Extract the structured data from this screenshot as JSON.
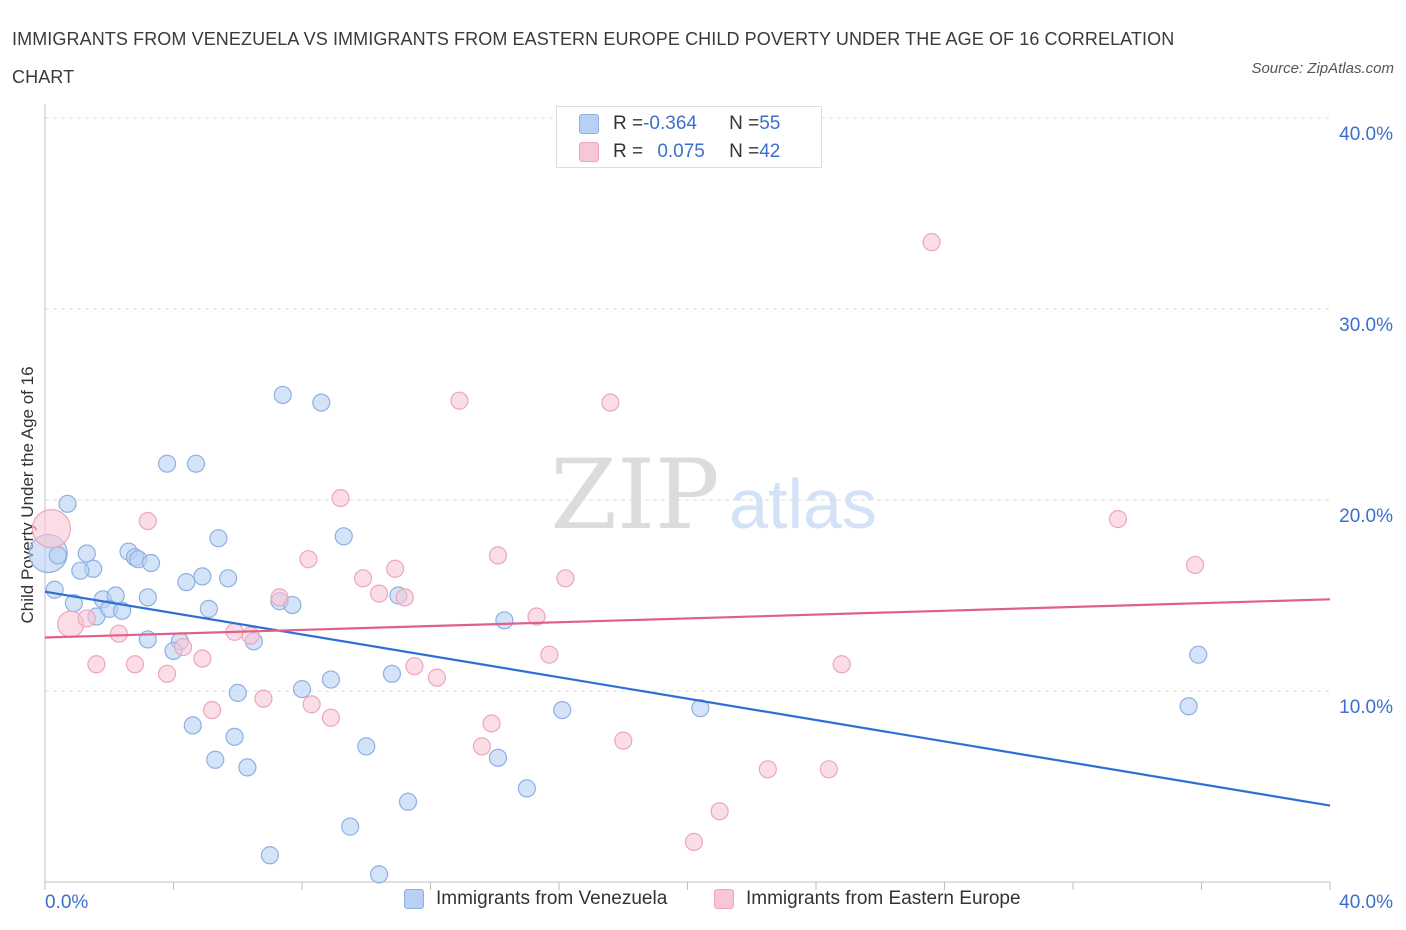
{
  "title": "IMMIGRANTS FROM VENEZUELA VS IMMIGRANTS FROM EASTERN EUROPE CHILD POVERTY UNDER THE AGE OF 16 CORRELATION CHART",
  "source": "Source: ZipAtlas.com",
  "watermark": {
    "zip": "ZIP",
    "atlas": "atlas"
  },
  "colors": {
    "blue_fill": "#b8d0f4",
    "blue_stroke": "#8fb0e2",
    "blue_line": "#2f6fd0",
    "pink_fill": "#f8c7d6",
    "pink_stroke": "#eda6bd",
    "pink_line": "#e0608a",
    "tick_text": "#3a6fd0",
    "grid": "#dddddd"
  },
  "stats": {
    "rows": [
      {
        "r_label": "R = ",
        "r_value": "-0.364",
        "n_label": "N = ",
        "n_value": "55",
        "color": "blue"
      },
      {
        "r_label": "R = ",
        "r_value": "0.075",
        "n_label": "N = ",
        "n_value": "42",
        "color": "pink"
      }
    ]
  },
  "chart_data": {
    "type": "scatter",
    "title": "IMMIGRANTS FROM VENEZUELA VS IMMIGRANTS FROM EASTERN EUROPE CHILD POVERTY UNDER THE AGE OF 16 CORRELATION CHART",
    "xlabel": "",
    "ylabel": "Child Poverty Under the Age of 16",
    "xlim": [
      0,
      40
    ],
    "ylim": [
      0,
      40
    ],
    "x_tick_labels": [
      "0.0%",
      "40.0%"
    ],
    "y_ticks": [
      10,
      20,
      30,
      40
    ],
    "y_tick_labels": [
      "10.0%",
      "20.0%",
      "30.0%",
      "40.0%"
    ],
    "grid": true,
    "legend_position": "bottom",
    "series": [
      {
        "name": "Immigrants from Venezuela",
        "color": "blue",
        "trend": {
          "x": [
            0,
            40
          ],
          "y": [
            15.2,
            4.0
          ]
        },
        "points": [
          [
            0.1,
            17.2,
            "big"
          ],
          [
            0.4,
            17.1
          ],
          [
            0.3,
            15.3
          ],
          [
            0.7,
            19.8
          ],
          [
            1.3,
            17.2
          ],
          [
            1.5,
            16.4
          ],
          [
            1.1,
            16.3
          ],
          [
            0.9,
            14.6
          ],
          [
            1.6,
            13.9
          ],
          [
            1.8,
            14.8
          ],
          [
            2.2,
            15.0
          ],
          [
            2.0,
            14.3
          ],
          [
            2.4,
            14.2
          ],
          [
            2.6,
            17.3
          ],
          [
            2.8,
            17.0
          ],
          [
            2.9,
            16.9
          ],
          [
            3.3,
            16.7
          ],
          [
            3.2,
            14.9
          ],
          [
            3.8,
            21.9
          ],
          [
            4.7,
            21.9
          ],
          [
            5.4,
            18.0
          ],
          [
            4.4,
            15.7
          ],
          [
            4.9,
            16.0
          ],
          [
            5.7,
            15.9
          ],
          [
            5.1,
            14.3
          ],
          [
            3.2,
            12.7
          ],
          [
            4.2,
            12.6
          ],
          [
            4.0,
            12.1
          ],
          [
            6.5,
            12.6
          ],
          [
            7.3,
            14.7
          ],
          [
            7.7,
            14.5
          ],
          [
            7.4,
            25.5
          ],
          [
            8.6,
            25.1
          ],
          [
            9.3,
            18.1
          ],
          [
            11.0,
            15.0
          ],
          [
            10.8,
            10.9
          ],
          [
            8.9,
            10.6
          ],
          [
            8.0,
            10.1
          ],
          [
            6.0,
            9.9
          ],
          [
            4.6,
            8.2
          ],
          [
            5.9,
            7.6
          ],
          [
            5.3,
            6.4
          ],
          [
            6.3,
            6.0
          ],
          [
            10.0,
            7.1
          ],
          [
            11.3,
            4.2
          ],
          [
            14.3,
            13.7
          ],
          [
            14.1,
            6.5
          ],
          [
            15.0,
            4.9
          ],
          [
            16.1,
            9.0
          ],
          [
            9.5,
            2.9
          ],
          [
            7.0,
            1.4
          ],
          [
            10.4,
            0.4
          ],
          [
            20.4,
            9.1
          ],
          [
            35.6,
            9.2
          ],
          [
            35.9,
            11.9
          ]
        ]
      },
      {
        "name": "Immigrants from Eastern Europe",
        "color": "pink",
        "trend": {
          "x": [
            0,
            40
          ],
          "y": [
            12.8,
            14.8
          ]
        },
        "points": [
          [
            0.2,
            18.5,
            "big"
          ],
          [
            0.8,
            13.5,
            "mid"
          ],
          [
            1.3,
            13.8
          ],
          [
            1.6,
            11.4
          ],
          [
            2.3,
            13.0
          ],
          [
            2.8,
            11.4
          ],
          [
            3.2,
            18.9
          ],
          [
            3.8,
            10.9
          ],
          [
            4.3,
            12.3
          ],
          [
            4.9,
            11.7
          ],
          [
            5.2,
            9.0
          ],
          [
            5.9,
            13.1
          ],
          [
            6.4,
            12.9
          ],
          [
            6.8,
            9.6
          ],
          [
            7.3,
            14.9
          ],
          [
            8.3,
            9.3
          ],
          [
            8.2,
            16.9
          ],
          [
            8.9,
            8.6
          ],
          [
            9.2,
            20.1
          ],
          [
            9.9,
            15.9
          ],
          [
            10.4,
            15.1
          ],
          [
            10.9,
            16.4
          ],
          [
            11.2,
            14.9
          ],
          [
            11.5,
            11.3
          ],
          [
            12.2,
            10.7
          ],
          [
            12.9,
            25.2
          ],
          [
            13.6,
            7.1
          ],
          [
            13.9,
            8.3
          ],
          [
            14.1,
            17.1
          ],
          [
            15.3,
            13.9
          ],
          [
            15.7,
            11.9
          ],
          [
            16.2,
            15.9
          ],
          [
            17.6,
            25.1
          ],
          [
            18.0,
            7.4
          ],
          [
            20.2,
            2.1
          ],
          [
            21.0,
            3.7
          ],
          [
            22.5,
            5.9
          ],
          [
            24.4,
            5.9
          ],
          [
            24.8,
            11.4
          ],
          [
            27.6,
            33.5
          ],
          [
            33.4,
            19.0
          ],
          [
            35.8,
            16.6
          ]
        ]
      }
    ]
  }
}
